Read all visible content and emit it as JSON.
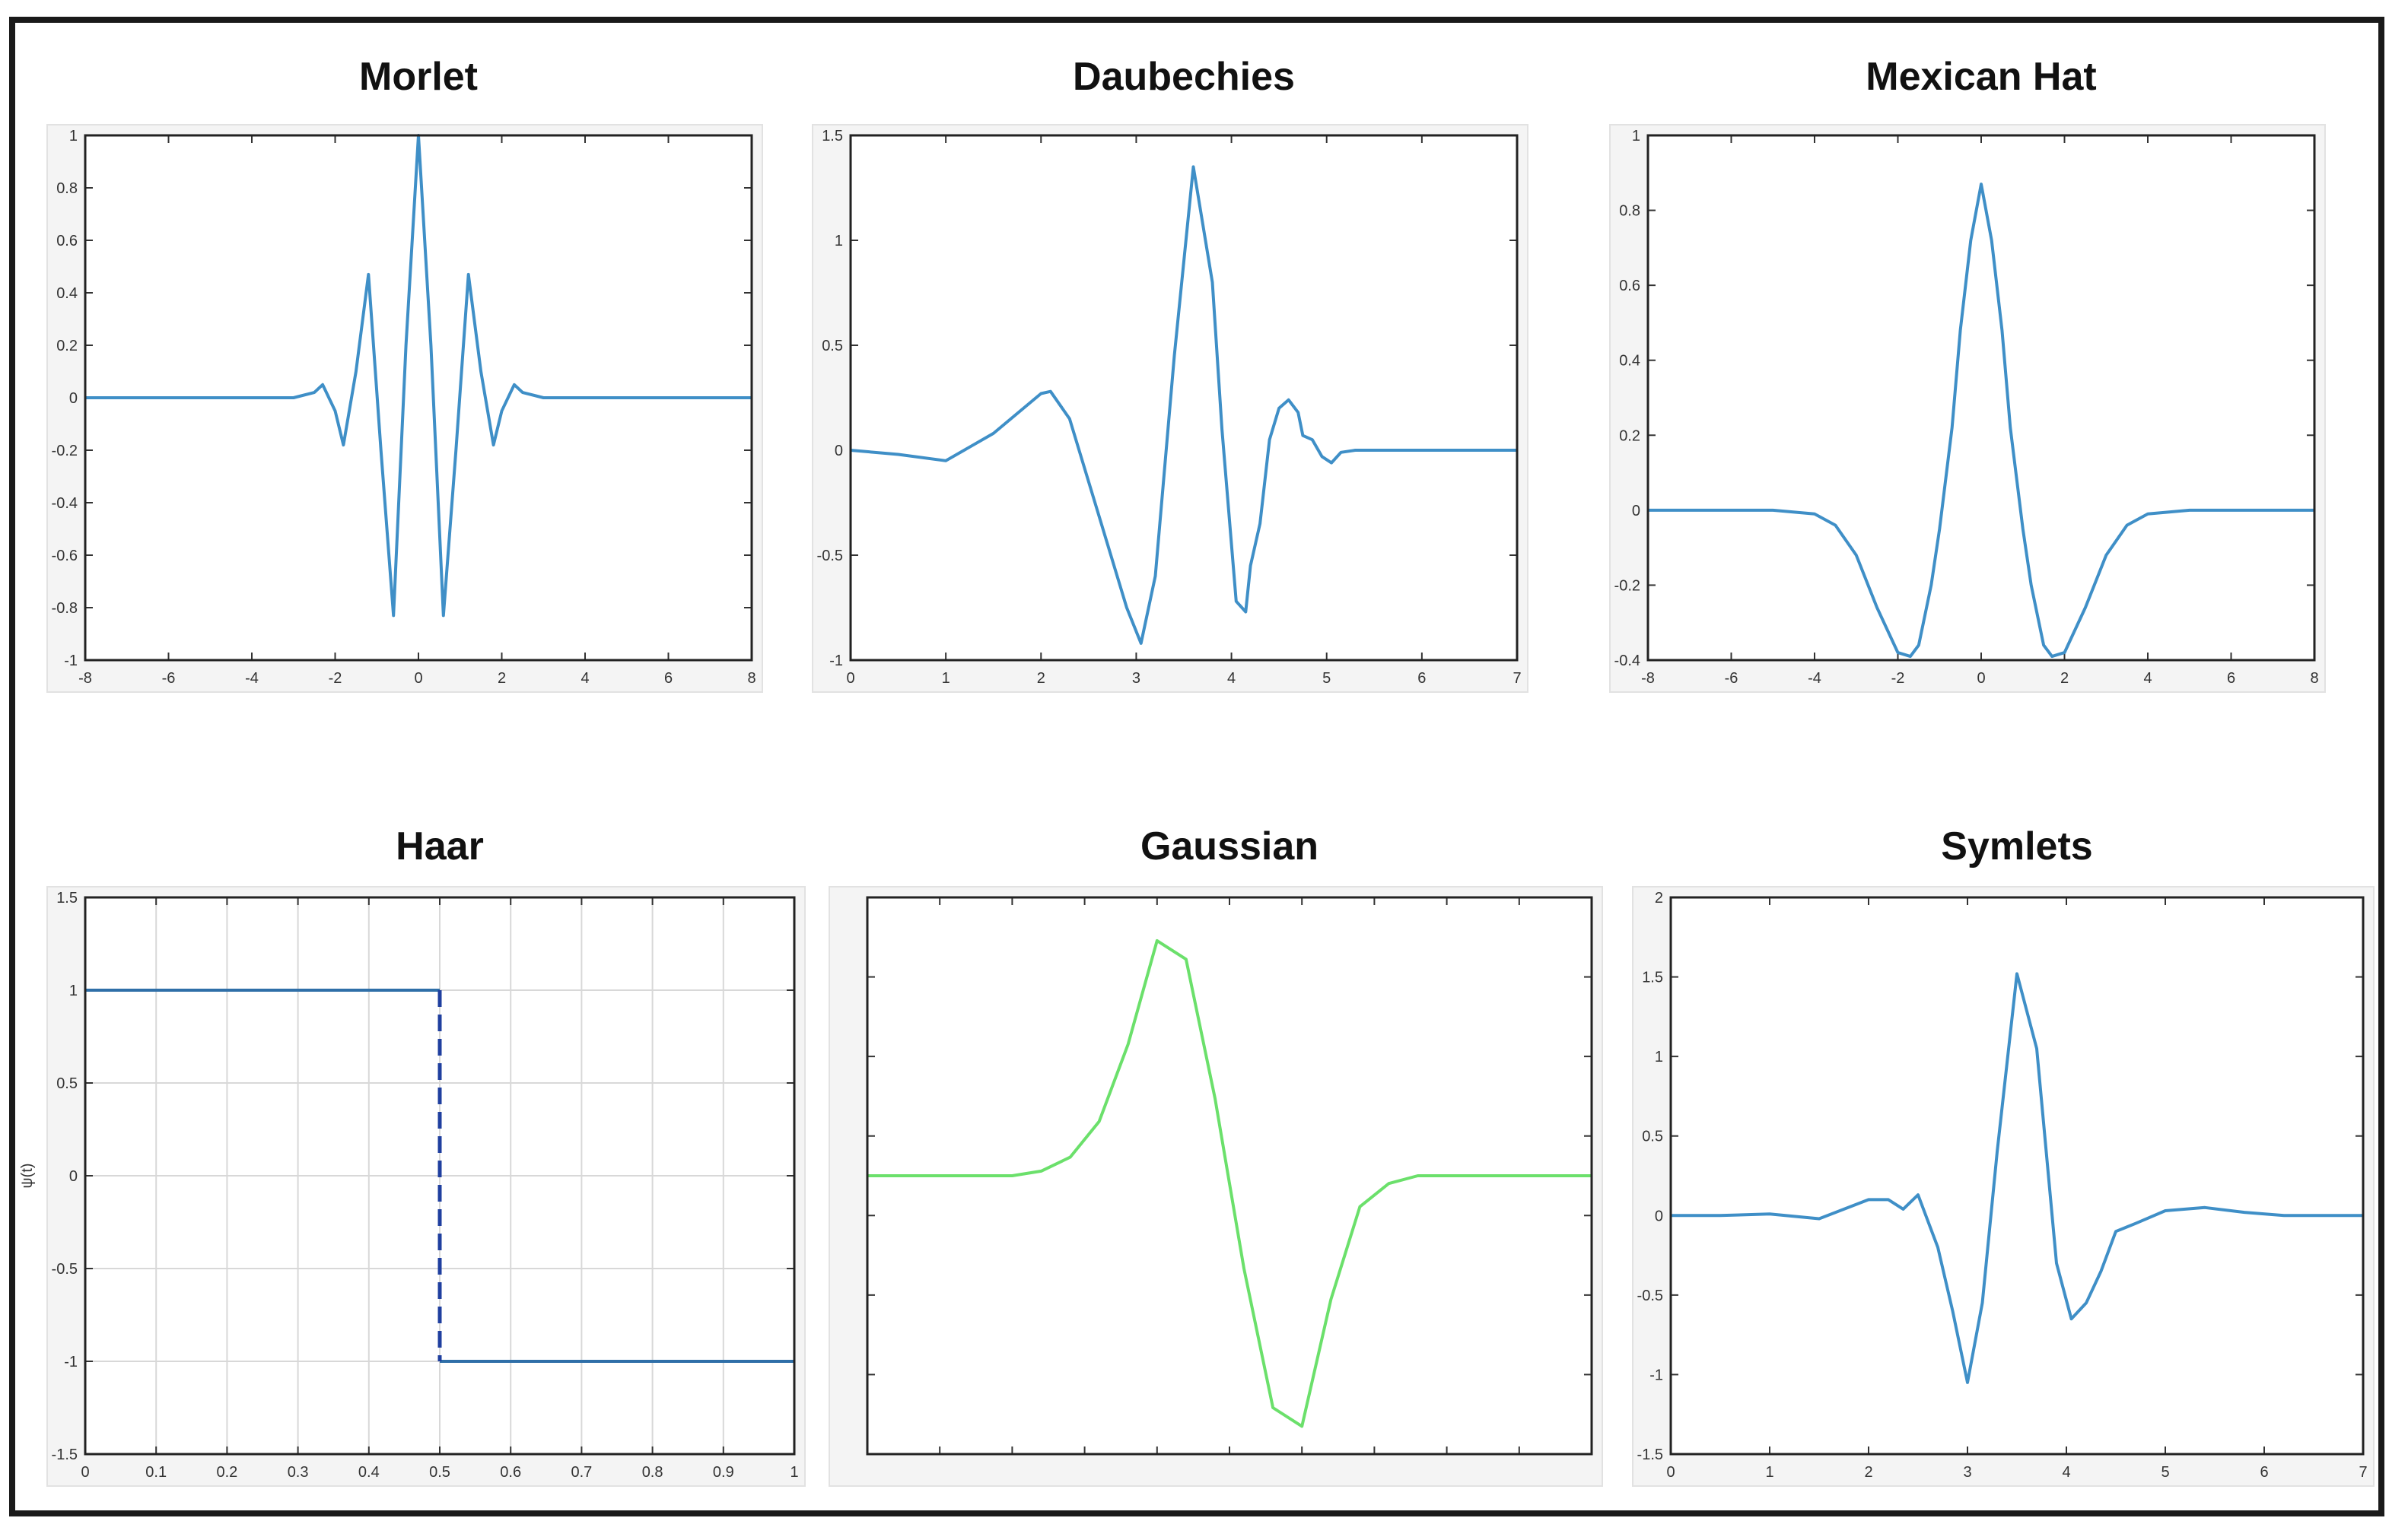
{
  "chart_data": [
    {
      "id": "morlet",
      "type": "line",
      "title": "Morlet",
      "x_ticks": [
        "-8",
        "-6",
        "-4",
        "-2",
        "0",
        "2",
        "4",
        "6",
        "8"
      ],
      "y_ticks": [
        "-1",
        "-0.8",
        "-0.6",
        "-0.4",
        "-0.2",
        "0",
        "0.2",
        "0.4",
        "0.6",
        "0.8",
        "1"
      ],
      "xlim": [
        -8,
        8
      ],
      "ylim": [
        -1,
        1
      ],
      "grid": false,
      "color": "#3f8fc7",
      "stroke": "solid",
      "series": [
        {
          "x": [
            -8,
            -3,
            -2.5,
            -2.3,
            -2,
            -1.8,
            -1.5,
            -1.2,
            -0.9,
            -0.6,
            -0.3,
            0,
            0.3,
            0.6,
            0.9,
            1.2,
            1.5,
            1.8,
            2,
            2.3,
            2.5,
            3,
            8
          ],
          "y": [
            0,
            0,
            0.02,
            0.05,
            -0.05,
            -0.18,
            0.1,
            0.47,
            -0.2,
            -0.83,
            0.2,
            1,
            0.2,
            -0.83,
            -0.2,
            0.47,
            0.1,
            -0.18,
            -0.05,
            0.05,
            0.02,
            0,
            0
          ]
        }
      ]
    },
    {
      "id": "daubechies",
      "type": "line",
      "title": "Daubechies",
      "x_ticks": [
        "0",
        "1",
        "2",
        "3",
        "4",
        "5",
        "6",
        "7"
      ],
      "y_ticks": [
        "-1",
        "-0.5",
        "0",
        "0.5",
        "1",
        "1.5"
      ],
      "xlim": [
        0,
        7
      ],
      "ylim": [
        -1,
        1.5
      ],
      "grid": false,
      "color": "#3f8fc7",
      "stroke": "solid",
      "series": [
        {
          "x": [
            0,
            0.5,
            1,
            1.5,
            2,
            2.1,
            2.3,
            2.6,
            2.9,
            3.05,
            3.2,
            3.4,
            3.6,
            3.8,
            3.9,
            4.05,
            4.15,
            4.2,
            4.3,
            4.4,
            4.5,
            4.6,
            4.7,
            4.75,
            4.85,
            4.95,
            5.05,
            5.15,
            5.3,
            5.6,
            6,
            7
          ],
          "y": [
            0,
            -0.02,
            -0.05,
            0.08,
            0.27,
            0.28,
            0.15,
            -0.3,
            -0.75,
            -0.92,
            -0.6,
            0.45,
            1.35,
            0.8,
            0.1,
            -0.72,
            -0.77,
            -0.55,
            -0.35,
            0.05,
            0.2,
            0.24,
            0.18,
            0.07,
            0.05,
            -0.03,
            -0.06,
            -0.01,
            0.0,
            0.0,
            0,
            0
          ]
        }
      ]
    },
    {
      "id": "mexican-hat",
      "type": "line",
      "title": "Mexican Hat",
      "x_ticks": [
        "-8",
        "-6",
        "-4",
        "-2",
        "0",
        "2",
        "4",
        "6",
        "8"
      ],
      "y_ticks": [
        "-0.4",
        "-0.2",
        "0",
        "0.2",
        "0.4",
        "0.6",
        "0.8",
        "1"
      ],
      "xlim": [
        -8,
        8
      ],
      "ylim": [
        -0.4,
        1
      ],
      "grid": false,
      "color": "#3f8fc7",
      "stroke": "solid",
      "series": [
        {
          "x": [
            -8,
            -6,
            -5,
            -4,
            -3.5,
            -3,
            -2.5,
            -2,
            -1.7,
            -1.5,
            -1.2,
            -1,
            -0.7,
            -0.5,
            -0.25,
            0,
            0.25,
            0.5,
            0.7,
            1,
            1.2,
            1.5,
            1.7,
            2,
            2.5,
            3,
            3.5,
            4,
            5,
            6,
            8
          ],
          "y": [
            0,
            0,
            0,
            -0.01,
            -0.04,
            -0.12,
            -0.26,
            -0.38,
            -0.39,
            -0.36,
            -0.2,
            -0.05,
            0.22,
            0.48,
            0.72,
            0.87,
            0.72,
            0.48,
            0.22,
            -0.05,
            -0.2,
            -0.36,
            -0.39,
            -0.38,
            -0.26,
            -0.12,
            -0.04,
            -0.01,
            0,
            0,
            0
          ]
        }
      ]
    },
    {
      "id": "haar",
      "type": "line",
      "title": "Haar",
      "ylabel": "ψ(t)",
      "x_ticks": [
        "0",
        "0.1",
        "0.2",
        "0.3",
        "0.4",
        "0.5",
        "0.6",
        "0.7",
        "0.8",
        "0.9",
        "1"
      ],
      "y_ticks": [
        "-1.5",
        "-1",
        "-0.5",
        "0",
        "0.5",
        "1",
        "1.5"
      ],
      "xlim": [
        0,
        1
      ],
      "ylim": [
        -1.5,
        1.5
      ],
      "grid": true,
      "color": "#2f6fa8",
      "stroke": "solid",
      "series": [
        {
          "x": [
            0,
            0.5
          ],
          "y": [
            1,
            1
          ]
        },
        {
          "x": [
            0.5,
            1
          ],
          "y": [
            -1,
            -1
          ]
        },
        {
          "x": [
            0.5,
            0.5
          ],
          "y": [
            1,
            -1
          ],
          "dashed": true,
          "color": "#1f3f9f"
        }
      ]
    },
    {
      "id": "gaussian",
      "type": "line",
      "title": "Gaussian",
      "x_ticks": [
        "",
        "",
        "",
        "",
        "",
        "",
        "",
        "",
        "",
        "",
        ""
      ],
      "y_ticks": [
        "",
        "",
        "",
        "",
        "",
        "",
        "",
        ""
      ],
      "xlim": [
        -5,
        5
      ],
      "ylim": [
        -1.8,
        1.8
      ],
      "grid": false,
      "color": "#6be06b",
      "stroke": "solid",
      "series": [
        {
          "x": [
            -5,
            -3,
            -2.6,
            -2.2,
            -1.8,
            -1.4,
            -1,
            -0.6,
            -0.2,
            0.2,
            0.6,
            1,
            1.4,
            1.8,
            2.2,
            2.6,
            3,
            5
          ],
          "y": [
            0,
            0,
            0.03,
            0.12,
            0.35,
            0.85,
            1.52,
            1.4,
            0.5,
            -0.6,
            -1.5,
            -1.62,
            -0.8,
            -0.2,
            -0.05,
            0,
            0,
            0
          ]
        }
      ]
    },
    {
      "id": "symlets",
      "type": "line",
      "title": "Symlets",
      "x_ticks": [
        "0",
        "1",
        "2",
        "3",
        "4",
        "5",
        "6",
        "7"
      ],
      "y_ticks": [
        "-1.5",
        "-1",
        "-0.5",
        "0",
        "0.5",
        "1",
        "1.5",
        "2"
      ],
      "xlim": [
        0,
        7
      ],
      "ylim": [
        -1.5,
        2
      ],
      "grid": false,
      "color": "#3f8fc7",
      "stroke": "solid",
      "series": [
        {
          "x": [
            0,
            0.5,
            1,
            1.5,
            2,
            2.2,
            2.35,
            2.5,
            2.7,
            2.85,
            3,
            3.15,
            3.3,
            3.5,
            3.7,
            3.9,
            4.05,
            4.2,
            4.35,
            4.5,
            4.7,
            5,
            5.4,
            5.8,
            6.2,
            7
          ],
          "y": [
            0,
            0,
            0.01,
            -0.02,
            0.1,
            0.1,
            0.04,
            0.13,
            -0.2,
            -0.6,
            -1.05,
            -0.55,
            0.4,
            1.52,
            1.05,
            -0.3,
            -0.65,
            -0.55,
            -0.35,
            -0.1,
            -0.05,
            0.03,
            0.05,
            0.02,
            0,
            0
          ]
        }
      ]
    }
  ]
}
